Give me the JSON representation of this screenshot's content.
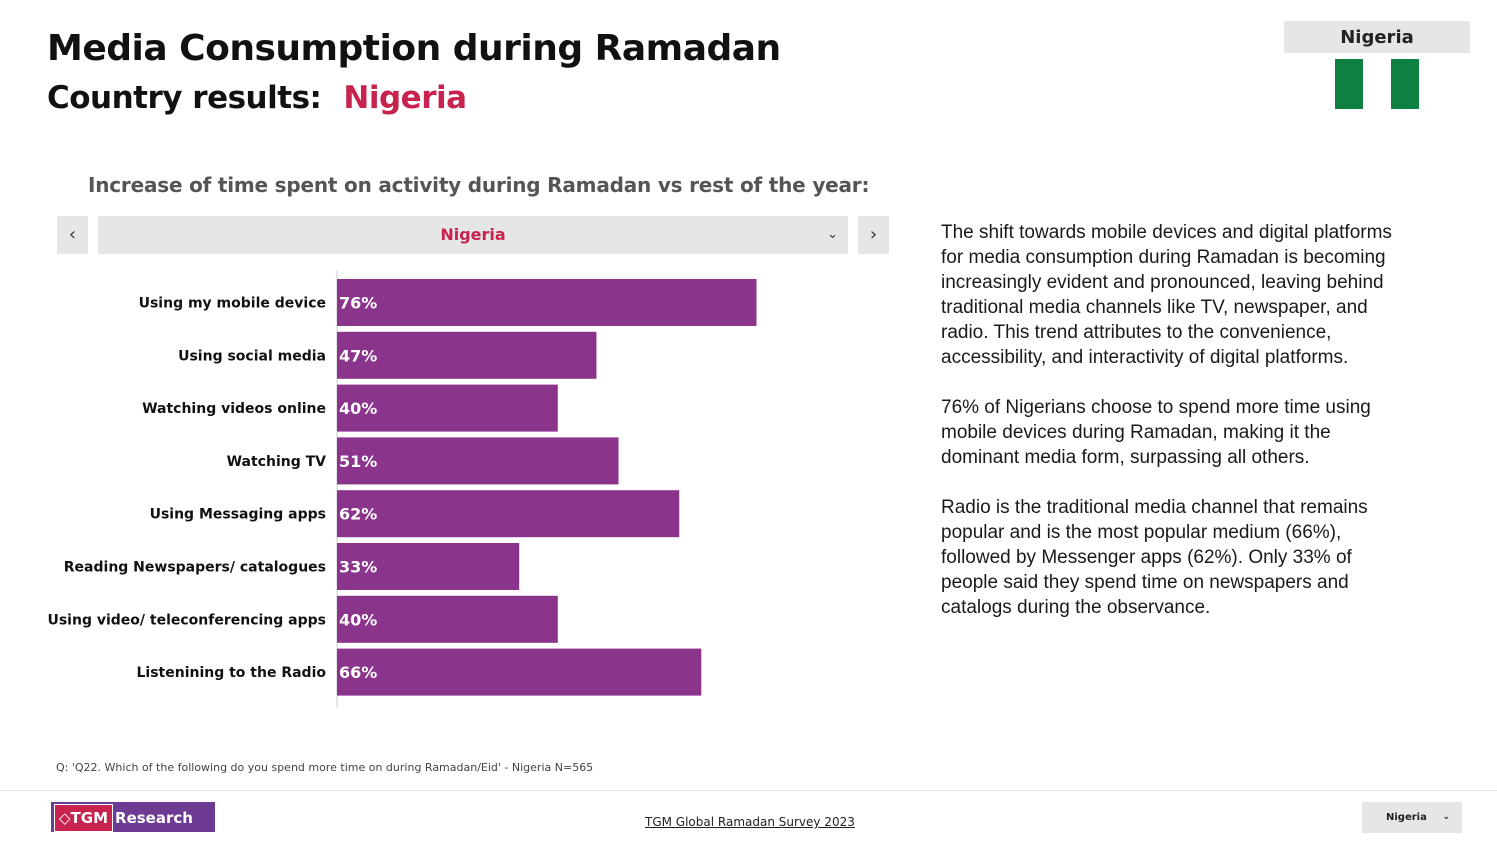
{
  "header": {
    "title": "Media Consumption during Ramadan",
    "subtitle_label": "Country results:",
    "country": "Nigeria"
  },
  "flag_box": {
    "label": "Nigeria"
  },
  "chart_heading": "Increase of time spent on activity during Ramadan vs rest of the year:",
  "nav": {
    "prev_icon": "‹",
    "next_icon": "›"
  },
  "dropdown": {
    "value": "Nigeria",
    "chevron": "⌄"
  },
  "chart_data": {
    "type": "bar",
    "orientation": "horizontal",
    "categories": [
      "Using my mobile device",
      "Using social media",
      "Watching videos online",
      "Watching TV",
      "Using Messaging apps",
      "Reading Newspapers/ catalogues",
      "Using video/ teleconferencing apps",
      "Listenining to the Radio"
    ],
    "values": [
      76,
      47,
      40,
      51,
      62,
      33,
      40,
      66
    ],
    "value_labels": [
      "76%",
      "47%",
      "40%",
      "51%",
      "62%",
      "33%",
      "40%",
      "66%"
    ],
    "xlim": [
      0,
      100
    ],
    "bar_color": "#8a348c",
    "grid": false
  },
  "narrative": [
    "The shift towards mobile devices and digital platforms for media consumption during Ramadan is becoming increasingly evident and pronounced, leaving behind traditional media channels like TV, newspaper, and radio. This trend attributes to the convenience, accessibility, and interactivity of digital platforms.",
    "76% of Nigerians choose to spend more time using mobile devices during Ramadan, making it the dominant media form, surpassing all others.",
    "Radio is the traditional media channel that remains popular and is the most popular medium (66%), followed by Messenger apps (62%). Only 33% of people said they spend time on newspapers and catalogs during the observance."
  ],
  "footnote": "Q: 'Q22. Which of the following do you spend more time on during Ramadan/Eid' - Nigeria N=565",
  "footer": {
    "logo_mark": "◇TGM",
    "logo_text": "Research",
    "link": "TGM Global Ramadan Survey 2023",
    "select_value": "Nigeria",
    "select_chevron": "⌄"
  },
  "colors": {
    "accent": "#c8234f",
    "bar": "#8a348c",
    "flag_green": "#0e8041"
  }
}
